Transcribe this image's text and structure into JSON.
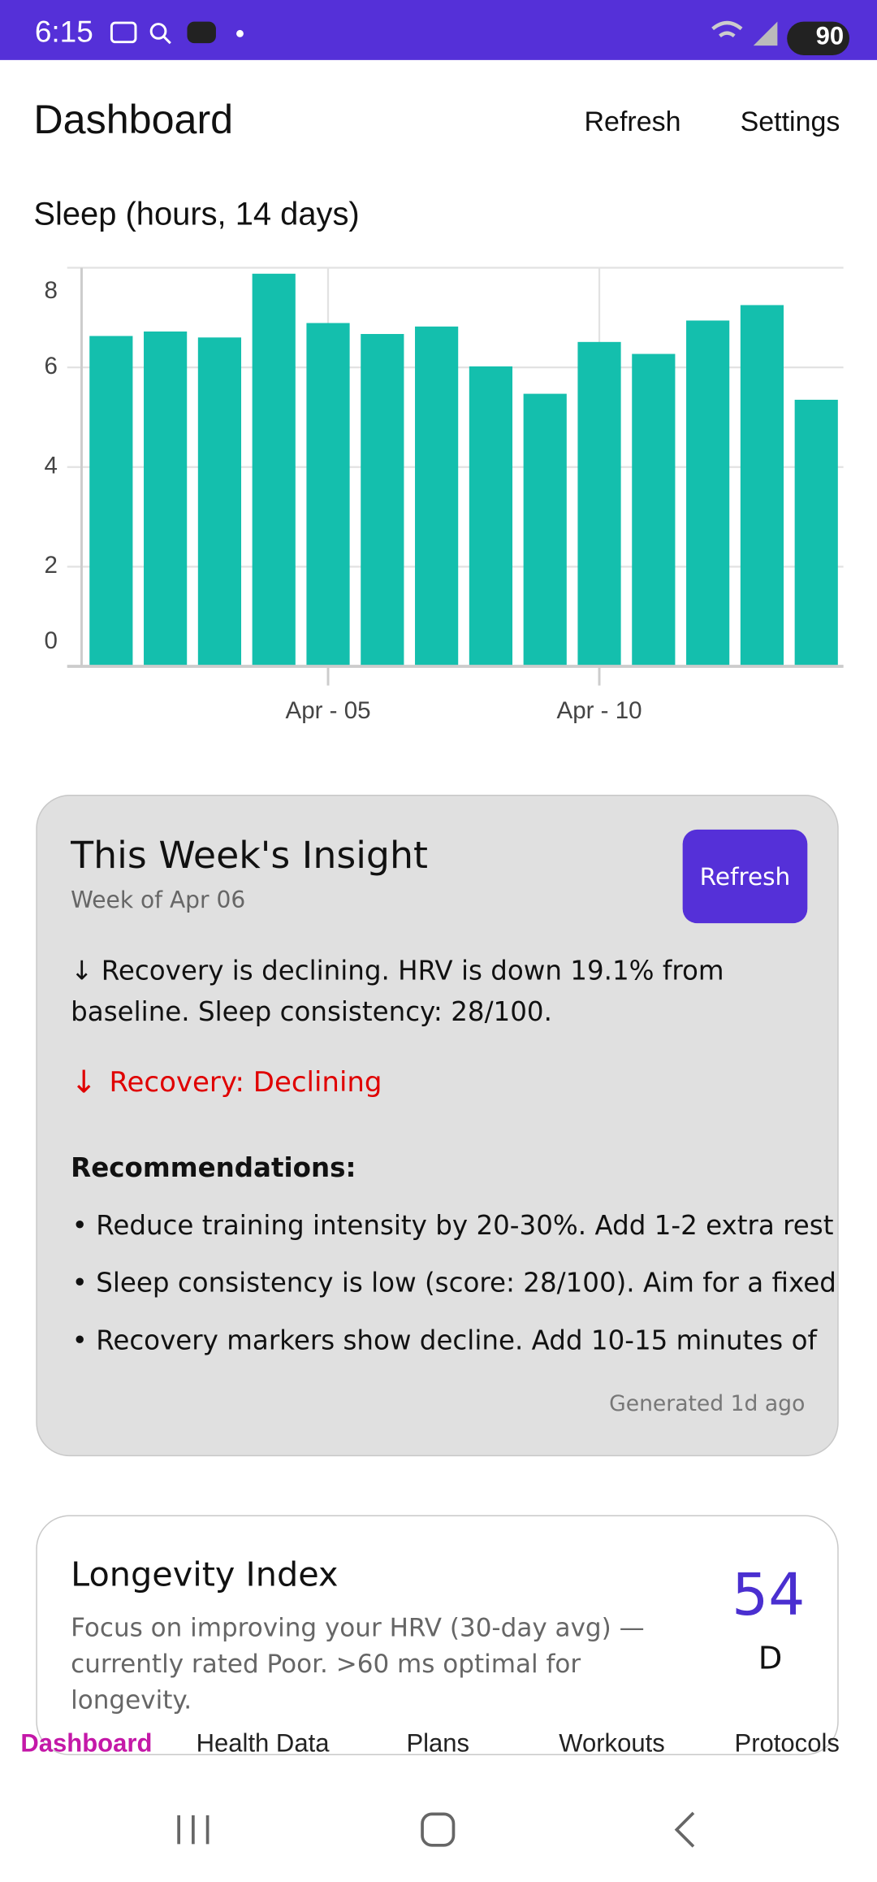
{
  "status_bar": {
    "time": "6:15",
    "battery": "90"
  },
  "header": {
    "title": "Dashboard",
    "actions": [
      "Refresh",
      "Settings"
    ]
  },
  "chart_data": {
    "type": "bar",
    "title": "Sleep (hours, 14 days)",
    "categories": [
      null,
      null,
      null,
      null,
      "Apr - 05",
      null,
      null,
      null,
      null,
      "Apr - 10",
      null,
      null,
      null,
      null
    ],
    "values": [
      6.63,
      6.72,
      6.6,
      7.88,
      6.89,
      6.67,
      6.82,
      6.02,
      5.47,
      6.51,
      6.27,
      6.94,
      7.25,
      5.35
    ],
    "color": "#14bfad",
    "ylim": [
      0,
      8
    ],
    "yticks": [
      0,
      2,
      4,
      6,
      8
    ],
    "grid": true
  },
  "insight": {
    "title": "This Week's Insight",
    "subtitle": "Week of Apr 06",
    "button": "Refresh",
    "summary": "↓ Recovery is declining. HRV is down 19.1% from baseline. Sleep consistency: 28/100.",
    "trend_arrow": "↓",
    "trend": "Recovery: Declining",
    "recommendations_title": "Recommendations:",
    "recommendations": [
      "Reduce training intensity by 20-30%. Add 1-2 extra rest",
      "Sleep consistency is low (score: 28/100). Aim for a fixed",
      "Recovery markers show decline. Add 10-15 minutes of"
    ],
    "footer": "Generated 1d ago"
  },
  "longevity": {
    "title": "Longevity Index",
    "description": "Focus on improving your HRV (30-day avg) — currently rated Poor. >60 ms optimal for longevity.",
    "score": 54,
    "grade": "D"
  },
  "bottom_nav": [
    "Dashboard",
    "Health Data",
    "Plans",
    "Workouts",
    "Protocols"
  ]
}
